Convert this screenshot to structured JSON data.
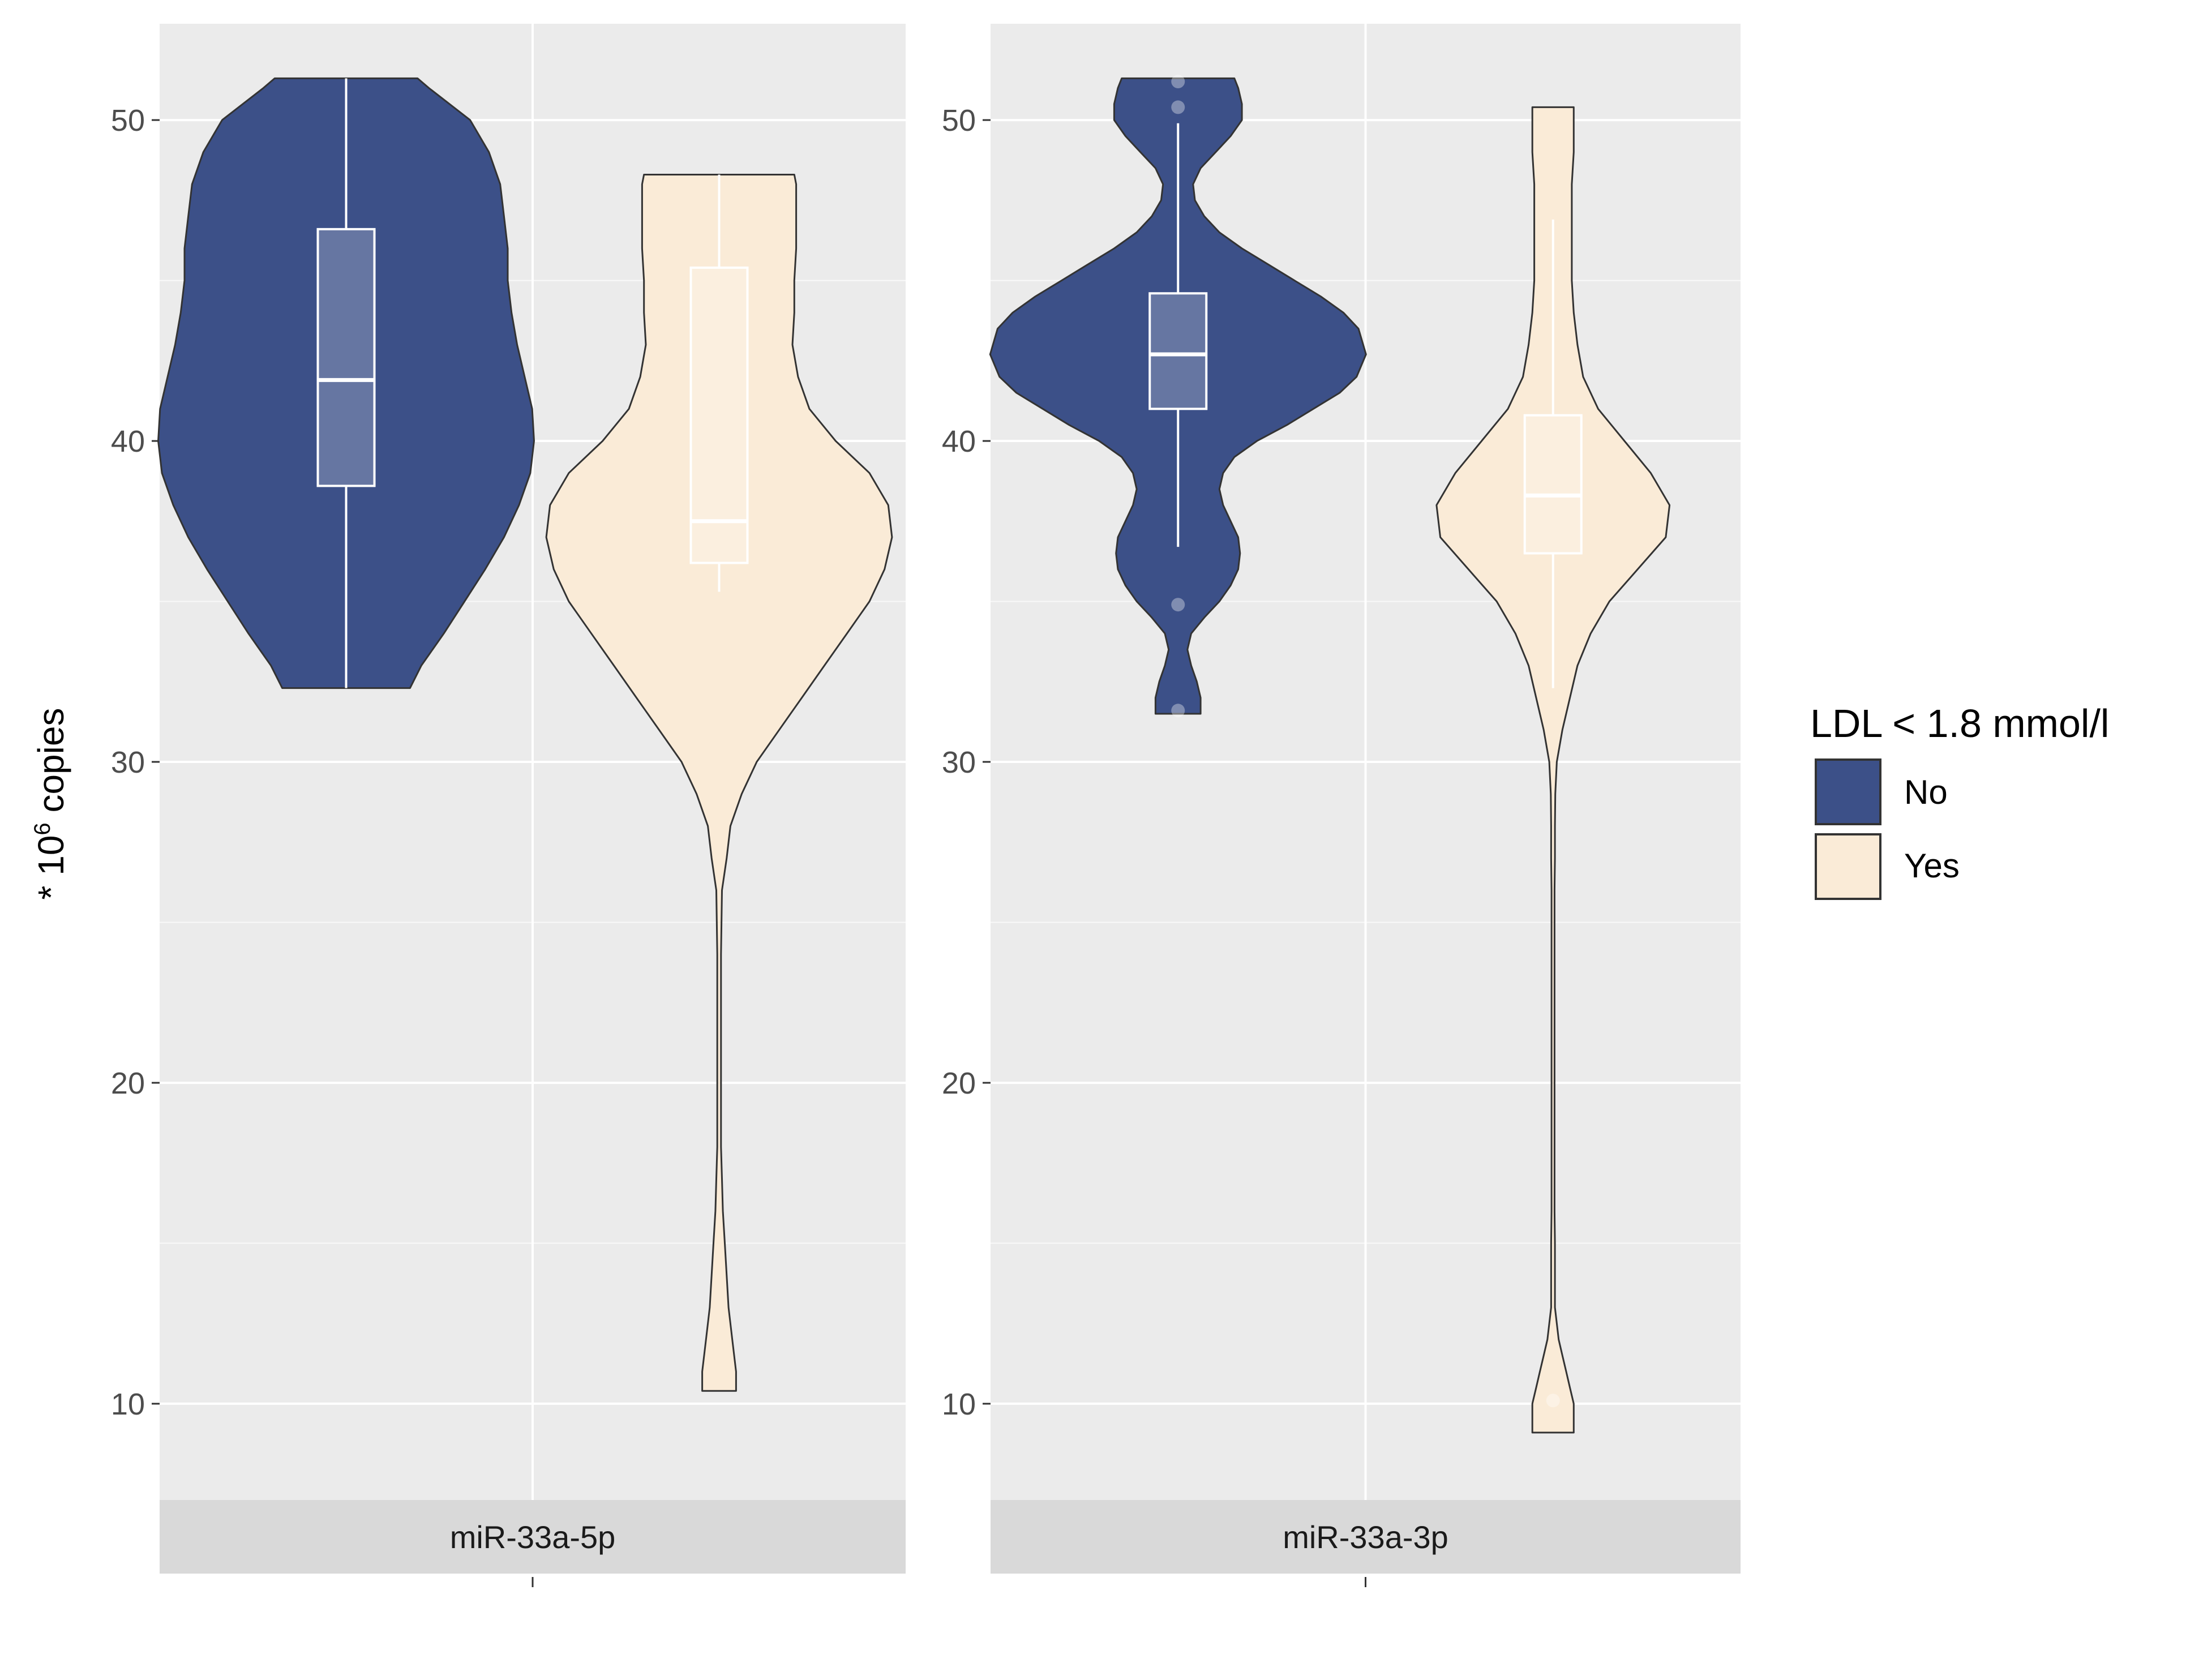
{
  "chart_data": {
    "type": "violin",
    "ylabel": "* 10^6 copies",
    "ylabel_parts": {
      "prefix": "* 10",
      "exponent": "6",
      "suffix": " copies"
    },
    "ylim": [
      7,
      53
    ],
    "yticks": [
      10,
      20,
      30,
      40,
      50
    ],
    "grid": true,
    "legend": {
      "title": "LDL < 1.8 mmol/l",
      "position": "right",
      "entries": [
        {
          "label": "No",
          "color": "#3c5088"
        },
        {
          "label": "Yes",
          "color": "#faebd7"
        }
      ]
    },
    "panels": [
      {
        "strip_label": "miR-33a-5p",
        "groups": [
          {
            "name": "No",
            "color": "#3c5088",
            "violin_range": [
              32.3,
              51.3
            ],
            "violin_profile": [
              [
                32.3,
                0.34
              ],
              [
                33,
                0.4
              ],
              [
                34,
                0.52
              ],
              [
                35,
                0.63
              ],
              [
                36,
                0.74
              ],
              [
                37,
                0.84
              ],
              [
                38,
                0.92
              ],
              [
                39,
                0.98
              ],
              [
                40,
                1.0
              ],
              [
                41,
                0.99
              ],
              [
                42,
                0.95
              ],
              [
                43,
                0.91
              ],
              [
                44,
                0.88
              ],
              [
                45,
                0.86
              ],
              [
                46,
                0.86
              ],
              [
                47,
                0.84
              ],
              [
                48,
                0.82
              ],
              [
                49,
                0.76
              ],
              [
                50,
                0.66
              ],
              [
                51,
                0.44
              ],
              [
                51.3,
                0.38
              ]
            ],
            "box": {
              "q1": 38.6,
              "median": 41.9,
              "q3": 46.6,
              "whisker_low": 32.3,
              "whisker_high": 51.3
            },
            "outliers": []
          },
          {
            "name": "Yes",
            "color": "#faebd7",
            "violin_range": [
              10.4,
              48.3
            ],
            "violin_profile": [
              [
                10.4,
                0.09
              ],
              [
                11,
                0.09
              ],
              [
                12,
                0.07
              ],
              [
                13,
                0.05
              ],
              [
                14,
                0.04
              ],
              [
                15,
                0.03
              ],
              [
                16,
                0.02
              ],
              [
                17,
                0.015
              ],
              [
                18,
                0.01
              ],
              [
                20,
                0.01
              ],
              [
                22,
                0.01
              ],
              [
                24,
                0.01
              ],
              [
                26,
                0.015
              ],
              [
                27,
                0.04
              ],
              [
                28,
                0.06
              ],
              [
                29,
                0.12
              ],
              [
                30,
                0.2
              ],
              [
                31,
                0.32
              ],
              [
                32,
                0.44
              ],
              [
                33,
                0.56
              ],
              [
                34,
                0.68
              ],
              [
                35,
                0.8
              ],
              [
                36,
                0.88
              ],
              [
                37,
                0.92
              ],
              [
                38,
                0.9
              ],
              [
                39,
                0.8
              ],
              [
                40,
                0.62
              ],
              [
                41,
                0.48
              ],
              [
                42,
                0.42
              ],
              [
                43,
                0.39
              ],
              [
                44,
                0.4
              ],
              [
                45,
                0.4
              ],
              [
                46,
                0.41
              ],
              [
                47,
                0.41
              ],
              [
                48,
                0.41
              ],
              [
                48.3,
                0.4
              ]
            ],
            "box": {
              "q1": 36.2,
              "median": 37.5,
              "q3": 45.4,
              "whisker_low": 35.3,
              "whisker_high": 48.3
            },
            "outliers": []
          }
        ]
      },
      {
        "strip_label": "miR-33a-3p",
        "groups": [
          {
            "name": "No",
            "color": "#3c5088",
            "violin_range": [
              31.5,
              51.3
            ],
            "violin_profile": [
              [
                31.5,
                0.12
              ],
              [
                32,
                0.12
              ],
              [
                32.5,
                0.1
              ],
              [
                33,
                0.07
              ],
              [
                33.5,
                0.05
              ],
              [
                34,
                0.07
              ],
              [
                34.5,
                0.14
              ],
              [
                35,
                0.22
              ],
              [
                35.5,
                0.28
              ],
              [
                36,
                0.32
              ],
              [
                36.5,
                0.33
              ],
              [
                37,
                0.32
              ],
              [
                37.5,
                0.28
              ],
              [
                38,
                0.24
              ],
              [
                38.5,
                0.22
              ],
              [
                39,
                0.24
              ],
              [
                39.5,
                0.3
              ],
              [
                40,
                0.42
              ],
              [
                40.5,
                0.58
              ],
              [
                41,
                0.72
              ],
              [
                41.5,
                0.86
              ],
              [
                42,
                0.95
              ],
              [
                42.7,
                1.0
              ],
              [
                43.5,
                0.96
              ],
              [
                44,
                0.88
              ],
              [
                44.5,
                0.76
              ],
              [
                45,
                0.62
              ],
              [
                45.5,
                0.48
              ],
              [
                46,
                0.34
              ],
              [
                46.5,
                0.22
              ],
              [
                47,
                0.14
              ],
              [
                47.5,
                0.09
              ],
              [
                48,
                0.08
              ],
              [
                48.5,
                0.12
              ],
              [
                49,
                0.2
              ],
              [
                49.5,
                0.28
              ],
              [
                50,
                0.34
              ],
              [
                50.5,
                0.34
              ],
              [
                51,
                0.32
              ],
              [
                51.3,
                0.3
              ]
            ],
            "box": {
              "q1": 41.0,
              "median": 42.7,
              "q3": 44.6,
              "whisker_low": 36.7,
              "whisker_high": 49.9
            },
            "outliers": [
              31.6,
              34.9,
              50.4,
              51.2
            ]
          },
          {
            "name": "Yes",
            "color": "#faebd7",
            "violin_range": [
              9.1,
              50.4
            ],
            "violin_profile": [
              [
                9.1,
                0.11
              ],
              [
                10,
                0.11
              ],
              [
                10.5,
                0.09
              ],
              [
                11,
                0.07
              ],
              [
                11.5,
                0.05
              ],
              [
                12,
                0.03
              ],
              [
                12.5,
                0.02
              ],
              [
                13,
                0.01
              ],
              [
                14,
                0.01
              ],
              [
                15,
                0.01
              ],
              [
                16,
                0.008
              ],
              [
                18,
                0.008
              ],
              [
                20,
                0.008
              ],
              [
                22,
                0.008
              ],
              [
                24,
                0.008
              ],
              [
                26,
                0.008
              ],
              [
                27,
                0.01
              ],
              [
                28,
                0.01
              ],
              [
                29,
                0.012
              ],
              [
                30,
                0.02
              ],
              [
                31,
                0.05
              ],
              [
                32,
                0.09
              ],
              [
                33,
                0.13
              ],
              [
                34,
                0.2
              ],
              [
                35,
                0.3
              ],
              [
                36,
                0.45
              ],
              [
                37,
                0.6
              ],
              [
                38,
                0.62
              ],
              [
                39,
                0.52
              ],
              [
                40,
                0.38
              ],
              [
                41,
                0.24
              ],
              [
                42,
                0.16
              ],
              [
                43,
                0.13
              ],
              [
                44,
                0.11
              ],
              [
                45,
                0.1
              ],
              [
                46,
                0.1
              ],
              [
                47,
                0.1
              ],
              [
                48,
                0.1
              ],
              [
                49,
                0.11
              ],
              [
                50,
                0.11
              ],
              [
                50.4,
                0.11
              ]
            ],
            "box": {
              "q1": 36.5,
              "median": 38.3,
              "q3": 40.8,
              "whisker_low": 32.3,
              "whisker_high": 46.9
            },
            "outliers": [
              10.1
            ]
          }
        ]
      }
    ]
  },
  "colors": {
    "panel_bg": "#ebebeb",
    "grid": "#ffffff",
    "strip_bg": "#d9d9d9",
    "violin_outline": "#333333",
    "box_line": "#ffffff"
  }
}
